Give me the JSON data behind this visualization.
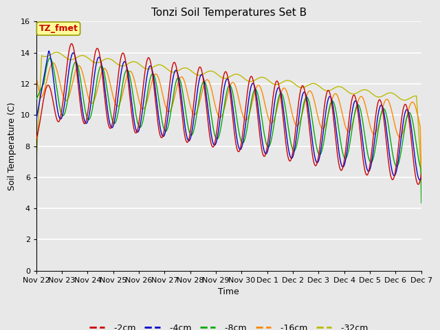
{
  "title": "Tonzi Soil Temperatures Set B",
  "xlabel": "Time",
  "ylabel": "Soil Temperature (C)",
  "ylim": [
    0,
    16
  ],
  "yticks": [
    0,
    2,
    4,
    6,
    8,
    10,
    12,
    14,
    16
  ],
  "colors": {
    "-2cm": "#cc0000",
    "-4cm": "#0000cc",
    "-8cm": "#00aa00",
    "-16cm": "#ff8800",
    "-32cm": "#bbbb00"
  },
  "legend_labels": [
    "-2cm",
    "-4cm",
    "-8cm",
    "-16cm",
    "-32cm"
  ],
  "annotation_text": "TZ_fmet",
  "annotation_color": "#cc0000",
  "annotation_bg": "#ffff99",
  "plot_bg": "#e8e8e8",
  "fig_bg": "#e8e8e8",
  "title_fontsize": 11,
  "axis_fontsize": 9,
  "tick_fontsize": 8,
  "x_tick_positions": [
    22,
    23,
    24,
    25,
    26,
    27,
    28,
    29,
    30,
    31,
    32,
    33,
    34,
    35,
    36,
    37
  ],
  "x_tick_labels": [
    "Nov 22",
    "Nov 23",
    "Nov 24",
    "Nov 25",
    "Nov 26",
    "Nov 27",
    "Nov 28",
    "Nov 29",
    "Nov 30",
    "Dec 1",
    "Dec 2",
    "Dec 3",
    "Dec 4",
    "Dec 5",
    "Dec 6",
    "Dec 7"
  ]
}
